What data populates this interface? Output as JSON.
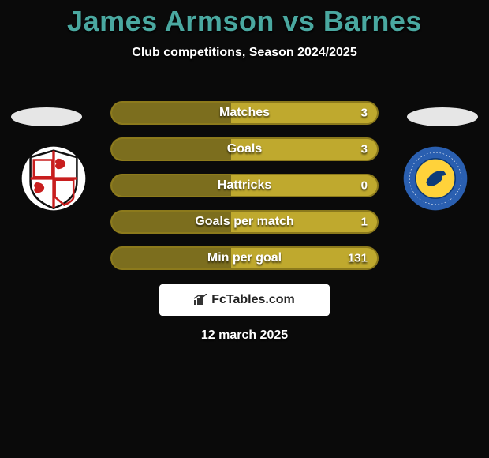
{
  "title": "James Armson vs Barnes",
  "subtitle": "Club competitions, Season 2024/2025",
  "date": "12 march 2025",
  "brand": "FcTables.com",
  "bar_style": {
    "fill_color": "#bfa92e",
    "border_color": "#8c7a1c",
    "left_shadow_color": "rgba(0,0,0,0.35)",
    "text_color": "#ffffff"
  },
  "title_color": "#4aa8a0",
  "background_color": "#0a0a0a",
  "stats": [
    {
      "label": "Matches",
      "value_right": "3",
      "left_fill_pct": 45
    },
    {
      "label": "Goals",
      "value_right": "3",
      "left_fill_pct": 45
    },
    {
      "label": "Hattricks",
      "value_right": "0",
      "left_fill_pct": 45
    },
    {
      "label": "Goals per match",
      "value_right": "1",
      "left_fill_pct": 45
    },
    {
      "label": "Min per goal",
      "value_right": "131",
      "left_fill_pct": 45
    }
  ],
  "left_badge": {
    "name": "Brackley Town",
    "bg": "#ffffff",
    "primary": "#c81e1e",
    "shield_border": "#111111"
  },
  "right_badge": {
    "name": "King's Lynn Town FC",
    "outer": "#2a5fb0",
    "inner": "#ffd23a",
    "ring_text_color": "#ffffff"
  }
}
